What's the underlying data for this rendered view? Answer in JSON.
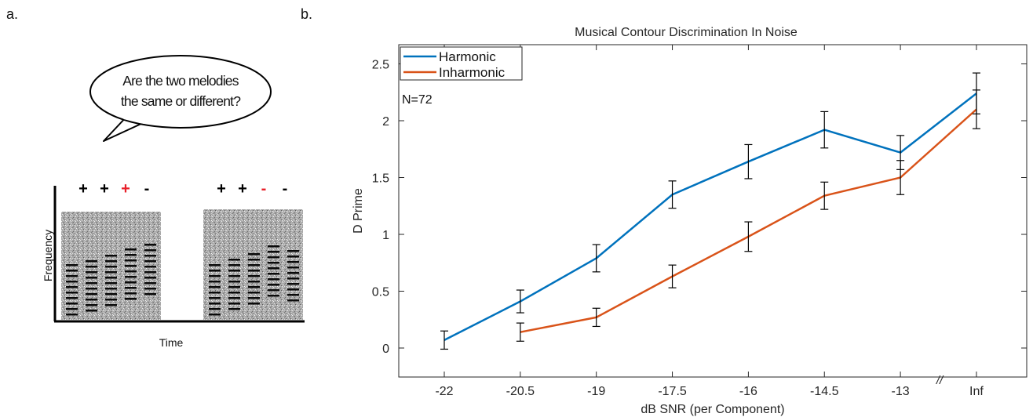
{
  "panel_a": {
    "label": "a.",
    "bubble_line1": "Are the two melodies",
    "bubble_line2": "the same or different?",
    "ylabel": "Frequency",
    "xlabel": "Time",
    "signs_left": [
      {
        "text": "+",
        "color": "#000000"
      },
      {
        "text": "+",
        "color": "#000000"
      },
      {
        "text": "+",
        "color": "#e8202a"
      },
      {
        "text": "-",
        "color": "#000000"
      }
    ],
    "signs_right": [
      {
        "text": "+",
        "color": "#000000"
      },
      {
        "text": "+",
        "color": "#000000"
      },
      {
        "text": "-",
        "color": "#e8202a"
      },
      {
        "text": "-",
        "color": "#000000"
      }
    ]
  },
  "chart_data": {
    "panel_label": "b.",
    "type": "line",
    "title": "Musical Contour Discrimination In Noise",
    "xlabel": "dB SNR (per Component)",
    "ylabel": "D Prime",
    "categories": [
      "-22",
      "-20.5",
      "-19",
      "-17.5",
      "-16",
      "-14.5",
      "-13",
      "Inf"
    ],
    "axis_break": "//",
    "ylim": [
      -0.2,
      2.6
    ],
    "yticks": [
      0,
      0.5,
      1,
      1.5,
      2,
      2.5
    ],
    "ytick_labels": [
      "0",
      "0.5",
      "1",
      "1.5",
      "2",
      "2.5"
    ],
    "annotation": "N=72",
    "legend_position": "top-left",
    "series": [
      {
        "name": "Harmonic",
        "color": "#0072bd",
        "values": [
          0.07,
          0.41,
          0.79,
          1.35,
          1.64,
          1.92,
          1.72,
          2.24
        ],
        "err": [
          0.08,
          0.1,
          0.12,
          0.12,
          0.15,
          0.16,
          0.15,
          0.18
        ]
      },
      {
        "name": "Inharmonic",
        "color": "#d95319",
        "values": [
          null,
          0.14,
          0.27,
          0.63,
          0.98,
          1.34,
          1.5,
          2.1
        ],
        "err": [
          null,
          0.08,
          0.08,
          0.1,
          0.13,
          0.12,
          0.15,
          0.17
        ]
      }
    ]
  }
}
